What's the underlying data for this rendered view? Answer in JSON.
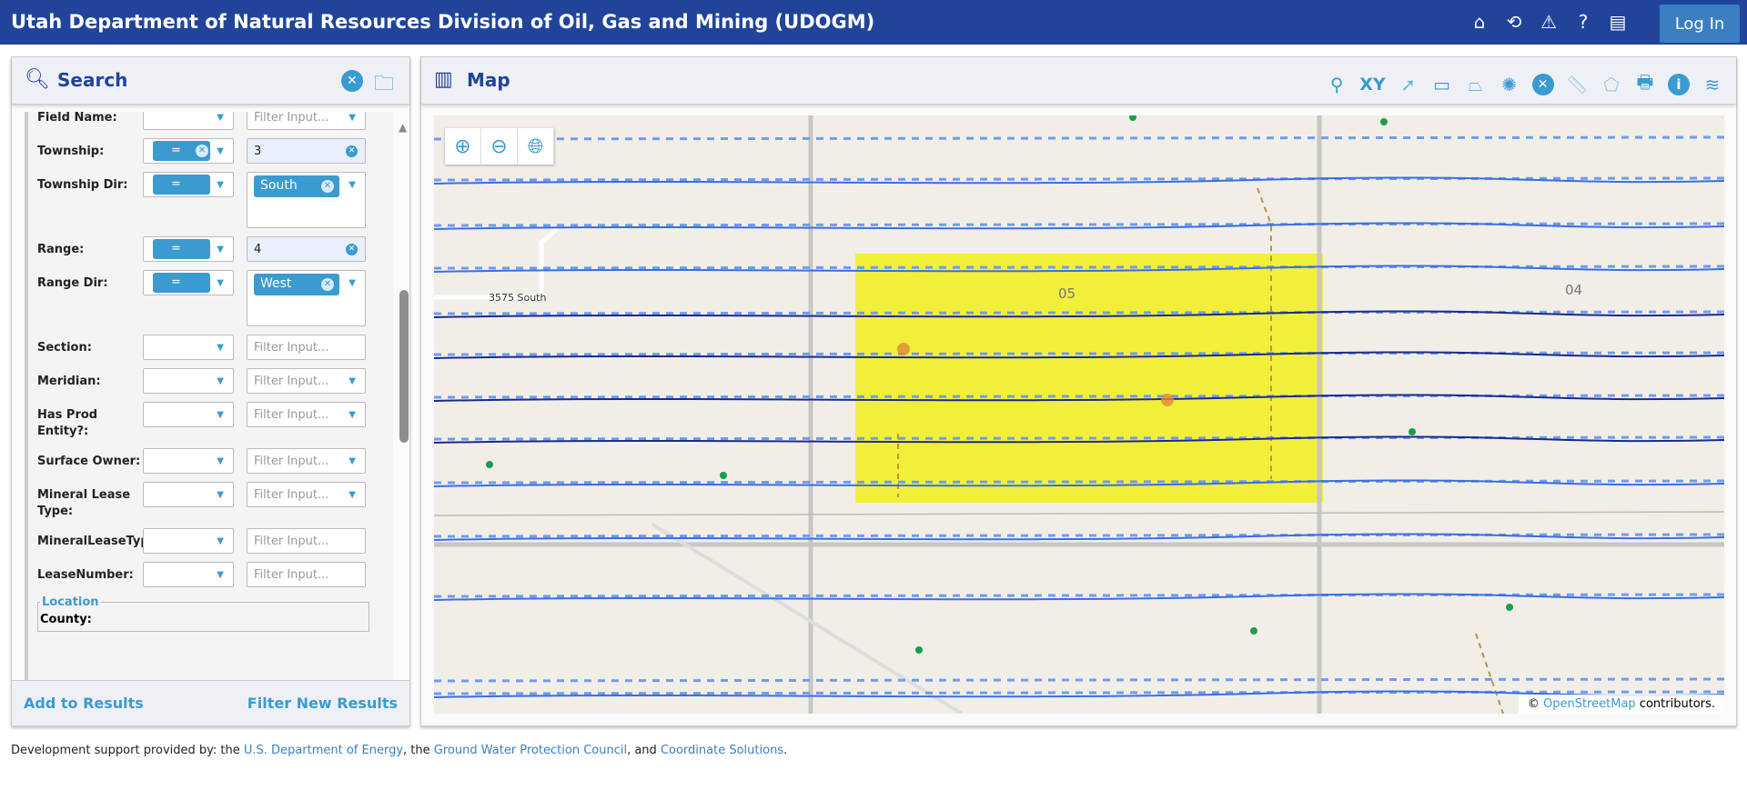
{
  "header": {
    "title": "Utah Department of Natural Resources Division of Oil, Gas and Mining (UDOGM)",
    "icons": [
      "home-icon",
      "history-icon",
      "warning-icon",
      "help-icon",
      "document-icon"
    ],
    "login_label": "Log In"
  },
  "search": {
    "title": "Search",
    "fields": [
      {
        "label": "Field Name:",
        "value": "",
        "placeholder": "Filter Input..."
      },
      {
        "label": "Township:",
        "operator": "=",
        "value": "3"
      },
      {
        "label": "Township Dir:",
        "operator": "=",
        "value": "South"
      },
      {
        "label": "Range:",
        "operator": "=",
        "value": "4"
      },
      {
        "label": "Range Dir:",
        "operator": "=",
        "value": "West"
      },
      {
        "label": "Section:",
        "placeholder": "Filter Input..."
      },
      {
        "label": "Meridian:",
        "placeholder": "Filter Input..."
      },
      {
        "label": "Has Prod Entity?:",
        "placeholder": "Filter Input..."
      },
      {
        "label": "Surface Owner:",
        "placeholder": "Filter Input..."
      },
      {
        "label": "Mineral Lease Type:",
        "placeholder": "Filter Input..."
      },
      {
        "label": "MineralLeaseTyp",
        "placeholder": "Filter Input..."
      },
      {
        "label": "LeaseNumber:",
        "placeholder": "Filter Input..."
      }
    ],
    "location_legend": "Location",
    "county_label": "County:",
    "add_results": "Add to Results",
    "filter_results": "Filter New Results"
  },
  "map": {
    "title": "Map",
    "toolbar": [
      "find-location-icon",
      "XY",
      "select-arrow-icon",
      "rectangle-icon",
      "polygon-icon",
      "spinner-icon",
      "clear-icon",
      "measure-line-icon",
      "measure-area-icon",
      "print-icon",
      "info-icon",
      "layers-icon"
    ],
    "xy_label": "XY",
    "section_labels": [
      "05",
      "04"
    ],
    "road_label": "3575 South",
    "attribution_prefix": "©",
    "attribution_link": "OpenStreetMap",
    "attribution_suffix": "contributors.",
    "highlight_color": "#f2ef3a"
  },
  "footer": {
    "prefix": "Development support provided by: the",
    "link1": "U.S. Department of Energy",
    "mid1": ", the",
    "link2": "Ground Water Protection Council",
    "mid2": ", and",
    "link3": "Coordinate Solutions",
    "end": "."
  }
}
